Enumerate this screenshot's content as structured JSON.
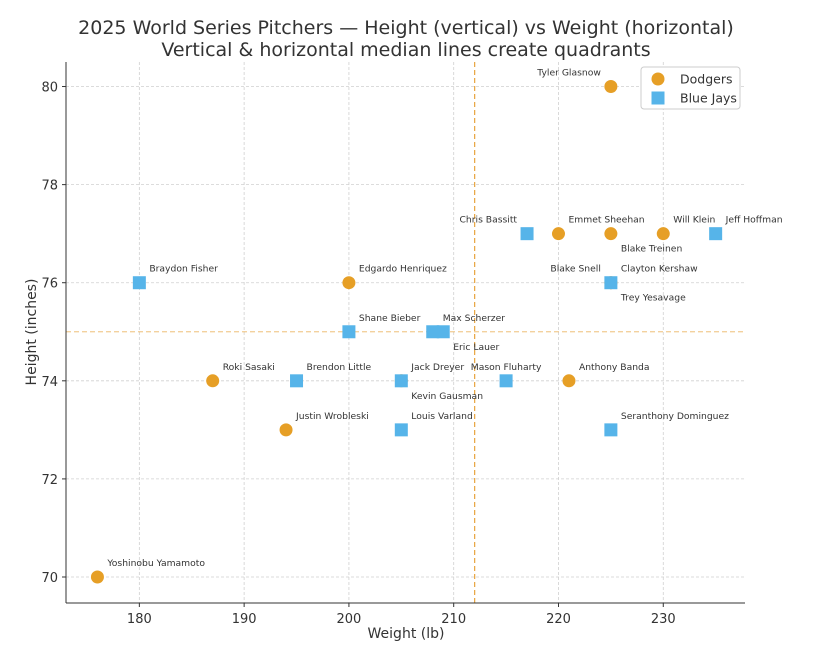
{
  "chart_data": {
    "type": "scatter",
    "title": "2025 World Series Pitchers — Height (vertical) vs Weight (horizontal)",
    "subtitle": "Vertical & horizontal median lines create quadrants",
    "xlabel": "Weight (lb)",
    "ylabel": "Height (inches)",
    "xlim": [
      173.0,
      237.8
    ],
    "ylim": [
      69.47,
      80.5
    ],
    "xticks": [
      180,
      190,
      200,
      210,
      220,
      230
    ],
    "yticks": [
      70,
      72,
      74,
      76,
      78,
      80
    ],
    "grid": true,
    "legend_position": "top-right",
    "medians": {
      "x": 212,
      "y": 75,
      "color": "#e8a33d"
    },
    "series": [
      {
        "name": "Dodgers",
        "marker": "circle",
        "color": "#e69f26",
        "points": [
          {
            "label": "Yoshinobu Yamamoto",
            "x": 176,
            "y": 70
          },
          {
            "label": "Roki Sasaki",
            "x": 187,
            "y": 74
          },
          {
            "label": "Justin Wrobleski",
            "x": 194,
            "y": 73
          },
          {
            "label": "Edgardo Henriquez",
            "x": 200,
            "y": 76
          },
          {
            "label": "Jack Dreyer",
            "x": 205,
            "y": 74
          },
          {
            "label": "Tyler Glasnow",
            "x": 225,
            "y": 80
          },
          {
            "label": "Emmet Sheehan",
            "x": 220,
            "y": 77
          },
          {
            "label": "Blake Treinen",
            "x": 225,
            "y": 77
          },
          {
            "label": "Will Klein",
            "x": 230,
            "y": 77
          },
          {
            "label": "Anthony Banda",
            "x": 221,
            "y": 74
          },
          {
            "label": "Clayton Kershaw",
            "x": 225,
            "y": 76
          },
          {
            "label": "Blake Snell",
            "x": 225,
            "y": 76
          }
        ]
      },
      {
        "name": "Blue Jays",
        "marker": "square",
        "color": "#56b4e9",
        "points": [
          {
            "label": "Braydon Fisher",
            "x": 180,
            "y": 76
          },
          {
            "label": "Shane Bieber",
            "x": 200,
            "y": 75
          },
          {
            "label": "Brendon Little",
            "x": 195,
            "y": 74
          },
          {
            "label": "Kevin Gausman",
            "x": 205,
            "y": 74
          },
          {
            "label": "Louis Varland",
            "x": 205,
            "y": 73
          },
          {
            "label": "Max Scherzer",
            "x": 208,
            "y": 75
          },
          {
            "label": "Eric Lauer",
            "x": 209,
            "y": 75
          },
          {
            "label": "Mason Fluharty",
            "x": 215,
            "y": 74
          },
          {
            "label": "Chris Bassitt",
            "x": 217,
            "y": 77
          },
          {
            "label": "Jeff Hoffman",
            "x": 235,
            "y": 77
          },
          {
            "label": "Trey Yesavage",
            "x": 225,
            "y": 76
          },
          {
            "label": "Seranthony Dominguez",
            "x": 225,
            "y": 73
          }
        ]
      }
    ]
  }
}
